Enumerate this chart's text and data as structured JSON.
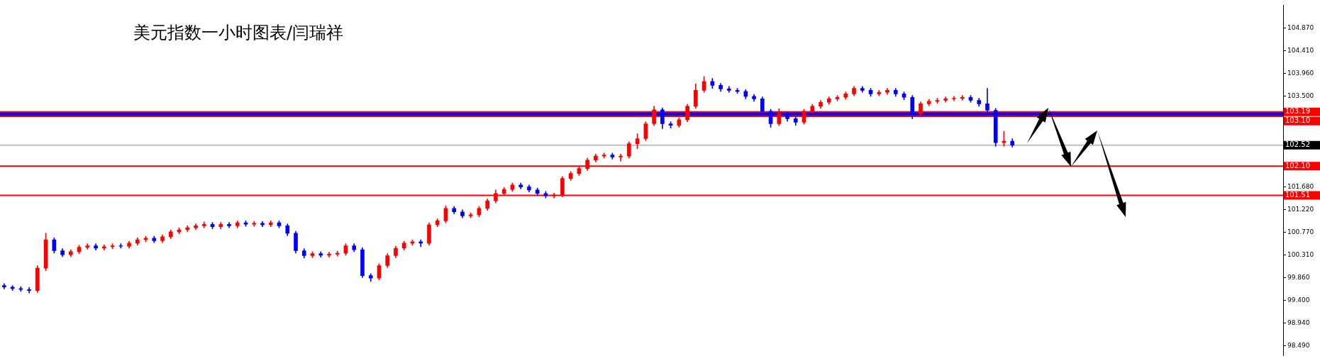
{
  "chart_data": {
    "type": "candlestick",
    "title": "美元指数一小时图表/闫瑞祥",
    "categories": [
      null,
      null,
      null,
      null,
      null,
      null,
      null,
      null,
      null,
      null,
      null,
      null,
      null,
      null,
      null,
      null,
      null,
      null,
      null,
      null,
      null,
      null,
      null,
      null,
      null,
      null,
      null,
      null,
      null,
      null,
      null,
      null,
      null,
      null,
      null,
      null,
      null,
      null,
      null,
      null,
      null,
      null,
      null,
      null,
      null,
      null,
      null,
      null,
      null,
      null,
      null,
      null,
      null,
      null,
      null,
      null,
      null,
      null,
      null,
      null,
      null,
      null,
      null,
      null,
      null,
      null,
      null,
      null,
      null,
      null,
      null,
      null,
      null,
      null,
      null,
      null,
      null,
      null,
      null,
      null,
      null,
      null,
      null,
      null,
      null,
      null,
      null,
      null,
      null,
      null,
      null,
      null,
      null,
      null,
      null,
      null,
      null,
      null,
      null,
      null,
      null,
      null,
      null,
      null,
      null,
      null,
      null,
      null,
      null,
      null,
      null,
      null,
      null,
      null,
      null,
      null,
      null,
      null,
      null,
      null,
      null,
      null,
      null,
      null,
      null,
      null,
      null,
      null,
      null,
      null,
      null,
      null,
      null,
      null,
      null,
      null,
      null,
      null,
      null,
      null,
      null,
      null,
      null,
      null,
      null,
      null,
      null,
      null,
      null,
      null,
      null,
      null,
      null,
      null
    ],
    "ohlc": [
      [
        99.7,
        99.74,
        99.63,
        99.67
      ],
      [
        99.67,
        99.7,
        99.6,
        99.64
      ],
      [
        99.64,
        99.68,
        99.58,
        99.62
      ],
      [
        99.62,
        99.66,
        99.55,
        99.6
      ],
      [
        99.6,
        100.1,
        99.56,
        100.05
      ],
      [
        100.05,
        100.75,
        100.0,
        100.62
      ],
      [
        100.62,
        100.66,
        100.35,
        100.4
      ],
      [
        100.4,
        100.44,
        100.28,
        100.32
      ],
      [
        100.32,
        100.42,
        100.28,
        100.38
      ],
      [
        100.38,
        100.51,
        100.34,
        100.47
      ],
      [
        100.47,
        100.54,
        100.43,
        100.5
      ],
      [
        100.5,
        100.54,
        100.41,
        100.45
      ],
      [
        100.45,
        100.52,
        100.41,
        100.48
      ],
      [
        100.48,
        100.54,
        100.44,
        100.5
      ],
      [
        100.5,
        100.54,
        100.45,
        100.49
      ],
      [
        100.49,
        100.59,
        100.45,
        100.55
      ],
      [
        100.55,
        100.66,
        100.51,
        100.62
      ],
      [
        100.62,
        100.69,
        100.58,
        100.65
      ],
      [
        100.65,
        100.69,
        100.56,
        100.6
      ],
      [
        100.6,
        100.72,
        100.56,
        100.68
      ],
      [
        100.68,
        100.82,
        100.64,
        100.78
      ],
      [
        100.78,
        100.86,
        100.74,
        100.82
      ],
      [
        100.82,
        100.9,
        100.78,
        100.86
      ],
      [
        100.86,
        100.94,
        100.82,
        100.9
      ],
      [
        100.9,
        100.98,
        100.86,
        100.93
      ],
      [
        100.93,
        100.97,
        100.84,
        100.88
      ],
      [
        100.88,
        100.97,
        100.84,
        100.93
      ],
      [
        100.93,
        100.97,
        100.86,
        100.9
      ],
      [
        100.9,
        101.0,
        100.86,
        100.96
      ],
      [
        100.96,
        101.0,
        100.89,
        100.93
      ],
      [
        100.93,
        100.99,
        100.89,
        100.95
      ],
      [
        100.95,
        100.99,
        100.88,
        100.92
      ],
      [
        100.92,
        101.0,
        100.88,
        100.96
      ],
      [
        100.96,
        101.0,
        100.86,
        100.9
      ],
      [
        100.9,
        100.94,
        100.7,
        100.75
      ],
      [
        100.75,
        100.79,
        100.35,
        100.4
      ],
      [
        100.4,
        100.44,
        100.25,
        100.3
      ],
      [
        100.3,
        100.38,
        100.26,
        100.34
      ],
      [
        100.34,
        100.38,
        100.27,
        100.31
      ],
      [
        100.31,
        100.37,
        100.27,
        100.33
      ],
      [
        100.33,
        100.39,
        100.29,
        100.35
      ],
      [
        100.35,
        100.54,
        100.31,
        100.5
      ],
      [
        100.5,
        100.54,
        100.38,
        100.42
      ],
      [
        100.42,
        100.46,
        99.86,
        99.9
      ],
      [
        99.9,
        99.94,
        99.78,
        99.85
      ],
      [
        99.85,
        100.14,
        99.81,
        100.1
      ],
      [
        100.1,
        100.34,
        100.06,
        100.3
      ],
      [
        100.3,
        100.49,
        100.26,
        100.45
      ],
      [
        100.45,
        100.59,
        100.41,
        100.55
      ],
      [
        100.55,
        100.62,
        100.51,
        100.58
      ],
      [
        100.58,
        100.62,
        100.48,
        100.55
      ],
      [
        100.55,
        100.96,
        100.51,
        100.92
      ],
      [
        100.92,
        101.04,
        100.88,
        101.0
      ],
      [
        101.0,
        101.3,
        100.96,
        101.25
      ],
      [
        101.25,
        101.29,
        101.14,
        101.18
      ],
      [
        101.18,
        101.22,
        101.06,
        101.1
      ],
      [
        101.1,
        101.16,
        101.06,
        101.12
      ],
      [
        101.12,
        101.29,
        101.08,
        101.25
      ],
      [
        101.25,
        101.44,
        101.21,
        101.4
      ],
      [
        101.4,
        101.62,
        101.36,
        101.55
      ],
      [
        101.55,
        101.67,
        101.51,
        101.63
      ],
      [
        101.63,
        101.76,
        101.59,
        101.72
      ],
      [
        101.72,
        101.76,
        101.64,
        101.68
      ],
      [
        101.68,
        101.72,
        101.58,
        101.62
      ],
      [
        101.62,
        101.66,
        101.51,
        101.55
      ],
      [
        101.55,
        101.59,
        101.46,
        101.5
      ],
      [
        101.5,
        101.56,
        101.46,
        101.52
      ],
      [
        101.52,
        101.89,
        101.48,
        101.85
      ],
      [
        101.85,
        101.99,
        101.81,
        101.95
      ],
      [
        101.95,
        102.09,
        101.91,
        102.05
      ],
      [
        102.05,
        102.26,
        102.01,
        102.22
      ],
      [
        102.22,
        102.34,
        102.18,
        102.3
      ],
      [
        102.3,
        102.36,
        102.26,
        102.32
      ],
      [
        102.32,
        102.36,
        102.24,
        102.28
      ],
      [
        102.28,
        102.34,
        102.2,
        102.3
      ],
      [
        102.3,
        102.59,
        102.26,
        102.55
      ],
      [
        102.55,
        102.75,
        102.45,
        102.65
      ],
      [
        102.65,
        102.99,
        102.61,
        102.95
      ],
      [
        102.95,
        103.3,
        102.91,
        103.23
      ],
      [
        103.23,
        103.27,
        102.85,
        102.95
      ],
      [
        102.95,
        102.99,
        102.86,
        102.92
      ],
      [
        102.92,
        103.07,
        102.88,
        103.03
      ],
      [
        103.03,
        103.34,
        102.99,
        103.3
      ],
      [
        103.3,
        103.75,
        103.26,
        103.62
      ],
      [
        103.62,
        103.9,
        103.58,
        103.8
      ],
      [
        103.8,
        103.86,
        103.66,
        103.72
      ],
      [
        103.72,
        103.76,
        103.6,
        103.65
      ],
      [
        103.65,
        103.7,
        103.58,
        103.62
      ],
      [
        103.62,
        103.66,
        103.56,
        103.6
      ],
      [
        103.6,
        103.64,
        103.45,
        103.5
      ],
      [
        103.5,
        103.54,
        103.4,
        103.45
      ],
      [
        103.45,
        103.49,
        103.15,
        103.2
      ],
      [
        103.2,
        103.24,
        102.88,
        102.95
      ],
      [
        102.95,
        103.25,
        102.91,
        103.15
      ],
      [
        103.15,
        103.19,
        103.0,
        103.05
      ],
      [
        103.05,
        103.09,
        102.92,
        102.98
      ],
      [
        102.98,
        103.24,
        102.94,
        103.2
      ],
      [
        103.2,
        103.34,
        103.16,
        103.3
      ],
      [
        103.3,
        103.42,
        103.26,
        103.38
      ],
      [
        103.38,
        103.49,
        103.34,
        103.45
      ],
      [
        103.45,
        103.52,
        103.41,
        103.48
      ],
      [
        103.48,
        103.59,
        103.44,
        103.55
      ],
      [
        103.55,
        103.7,
        103.51,
        103.66
      ],
      [
        103.66,
        103.7,
        103.58,
        103.62
      ],
      [
        103.62,
        103.66,
        103.5,
        103.55
      ],
      [
        103.55,
        103.62,
        103.51,
        103.58
      ],
      [
        103.58,
        103.66,
        103.54,
        103.62
      ],
      [
        103.62,
        103.66,
        103.5,
        103.55
      ],
      [
        103.55,
        103.59,
        103.43,
        103.48
      ],
      [
        103.48,
        103.52,
        103.05,
        103.15
      ],
      [
        103.15,
        103.39,
        103.11,
        103.35
      ],
      [
        103.35,
        103.44,
        103.31,
        103.4
      ],
      [
        103.4,
        103.46,
        103.36,
        103.42
      ],
      [
        103.42,
        103.49,
        103.38,
        103.45
      ],
      [
        103.45,
        103.5,
        103.41,
        103.46
      ],
      [
        103.46,
        103.52,
        103.42,
        103.48
      ],
      [
        103.48,
        103.52,
        103.38,
        103.42
      ],
      [
        103.42,
        103.46,
        103.3,
        103.35
      ],
      [
        103.35,
        103.66,
        103.15,
        103.22
      ],
      [
        103.22,
        103.26,
        102.5,
        102.57
      ],
      [
        102.57,
        102.8,
        102.5,
        102.6
      ],
      [
        102.6,
        102.65,
        102.48,
        102.52
      ],
      null,
      null,
      null,
      null,
      null,
      null,
      null,
      null,
      null,
      null,
      null,
      null,
      null,
      null,
      null,
      null,
      null,
      null,
      null,
      null,
      null,
      null,
      null,
      null,
      null,
      null,
      null,
      null,
      null,
      null,
      null,
      null
    ],
    "colors": [
      "#0000ff",
      "#0000ff",
      "#0000ff",
      "#0000ff",
      "#ff0000",
      "#ff0000",
      "#0000ff",
      "#0000ff",
      "#ff0000",
      "#ff0000",
      "#ff0000",
      "#0000ff",
      "#ff0000",
      "#ff0000",
      "#0000ff",
      "#ff0000",
      "#ff0000",
      "#ff0000",
      "#0000ff",
      "#ff0000",
      "#ff0000",
      "#ff0000",
      "#ff0000",
      "#ff0000",
      "#ff0000",
      "#0000ff",
      "#ff0000",
      "#0000ff",
      "#ff0000",
      "#0000ff",
      "#ff0000",
      "#0000ff",
      "#ff0000",
      "#0000ff",
      "#0000ff",
      "#0000ff",
      "#0000ff",
      "#ff0000",
      "#0000ff",
      "#ff0000",
      "#ff0000",
      "#ff0000",
      "#0000ff",
      "#0000ff",
      "#0000ff",
      "#ff0000",
      "#ff0000",
      "#ff0000",
      "#ff0000",
      "#ff0000",
      "#0000ff",
      "#ff0000",
      "#ff0000",
      "#ff0000",
      "#0000ff",
      "#0000ff",
      "#ff0000",
      "#ff0000",
      "#ff0000",
      "#ff0000",
      "#ff0000",
      "#ff0000",
      "#0000ff",
      "#0000ff",
      "#0000ff",
      "#0000ff",
      "#ff0000",
      "#ff0000",
      "#ff0000",
      "#ff0000",
      "#ff0000",
      "#ff0000",
      "#ff0000",
      "#0000ff",
      "#ff0000",
      "#ff0000",
      "#ff0000",
      "#ff0000",
      "#ff0000",
      "#0000ff",
      "#0000ff",
      "#ff0000",
      "#ff0000",
      "#ff0000",
      "#ff0000",
      "#0000ff",
      "#0000ff",
      "#0000ff",
      "#0000ff",
      "#0000ff",
      "#0000ff",
      "#0000ff",
      "#0000ff",
      "#ff0000",
      "#0000ff",
      "#0000ff",
      "#ff0000",
      "#ff0000",
      "#ff0000",
      "#ff0000",
      "#ff0000",
      "#ff0000",
      "#ff0000",
      "#0000ff",
      "#0000ff",
      "#ff0000",
      "#ff0000",
      "#0000ff",
      "#0000ff",
      "#0000ff",
      "#ff0000",
      "#ff0000",
      "#ff0000",
      "#ff0000",
      "#ff0000",
      "#ff0000",
      "#0000ff",
      "#0000ff",
      "#0000ff",
      "#0000ff",
      "#ff0000",
      "#0000ff",
      null,
      null,
      null,
      null,
      null,
      null,
      null,
      null,
      null,
      null,
      null,
      null,
      null,
      null,
      null,
      null,
      null,
      null,
      null,
      null,
      null,
      null,
      null,
      null,
      null,
      null,
      null,
      null,
      null,
      null,
      null,
      null
    ],
    "ylim": [
      98.29,
      105.33
    ],
    "yticks": [
      {
        "value": 98.49,
        "label": "98.490"
      },
      {
        "value": 98.94,
        "label": "98.940"
      },
      {
        "value": 99.4,
        "label": "99.400"
      },
      {
        "value": 99.86,
        "label": "99.860"
      },
      {
        "value": 100.31,
        "label": "100.310"
      },
      {
        "value": 100.77,
        "label": "100.770"
      },
      {
        "value": 101.22,
        "label": "101.220"
      },
      {
        "value": 101.68,
        "label": "101.680"
      },
      {
        "value": 102.14,
        "label": null
      },
      {
        "value": 102.59,
        "label": null
      },
      {
        "value": 103.05,
        "label": null
      },
      {
        "value": 103.5,
        "label": "103.500"
      },
      {
        "value": 103.96,
        "label": "103.960"
      },
      {
        "value": 104.41,
        "label": "104.410"
      },
      {
        "value": 104.87,
        "label": "104.870"
      }
    ],
    "bands": [
      {
        "axis": "y",
        "from": 103.1,
        "to": 103.19,
        "color": "#0000ff"
      }
    ],
    "ref_lines": [
      {
        "axis": "y",
        "value": 103.19,
        "label": "103.19",
        "color": "#ff0000"
      },
      {
        "axis": "y",
        "value": 103.1,
        "label": "103.10",
        "color": "#ff0000"
      },
      {
        "axis": "y",
        "value": 102.52,
        "label": "102.52",
        "color": "#c0c0c0"
      },
      {
        "axis": "y",
        "value": 102.1,
        "label": "102.10",
        "color": "#ff0000"
      },
      {
        "axis": "y",
        "value": 101.51,
        "label": "101.51",
        "color": "#ff0000"
      }
    ],
    "tick_labels": "y"
  }
}
